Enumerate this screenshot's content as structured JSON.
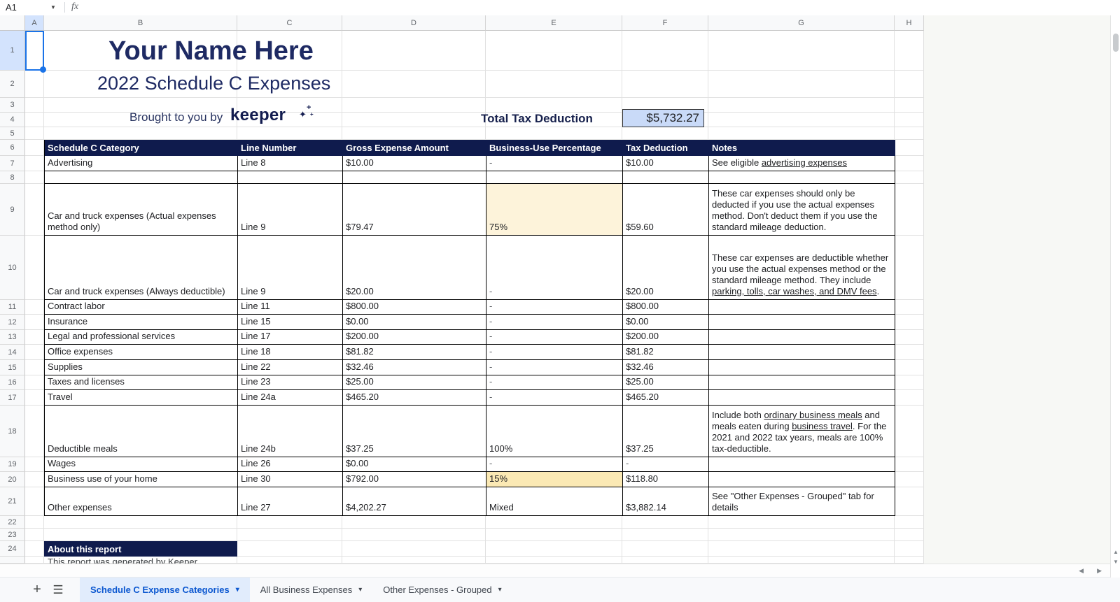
{
  "app": {
    "name_box": "A1",
    "formula_label": "fx"
  },
  "grid": {
    "columns": [
      "A",
      "B",
      "C",
      "D",
      "E",
      "F",
      "G",
      "H"
    ],
    "row_numbers": [
      "1",
      "2",
      "3",
      "4",
      "5",
      "6",
      "7",
      "8",
      "9",
      "10",
      "11",
      "12",
      "13",
      "14",
      "15",
      "16",
      "17",
      "18",
      "19",
      "20",
      "21",
      "22",
      "23",
      "24"
    ]
  },
  "header": {
    "title": "Your Name Here",
    "subtitle": "2022 Schedule C Expenses",
    "brought_by": "Brought to you by",
    "brand": "keeper",
    "total_label": "Total Tax Deduction",
    "total_value": "$5,732.27"
  },
  "table": {
    "headers": [
      "Schedule C Category",
      "Line Number",
      "Gross Expense Amount",
      "Business-Use Percentage",
      "Tax Deduction",
      "Notes"
    ],
    "rows": [
      {
        "category": "Advertising",
        "line": "Line 8",
        "gross": "$10.00",
        "pct": "-",
        "deduction": "$10.00",
        "notes": [
          {
            "t": "See eligible "
          },
          {
            "t": "advertising expenses",
            "link": true
          }
        ]
      },
      {
        "category": "",
        "line": "",
        "gross": "",
        "pct": "",
        "deduction": "",
        "notes": []
      },
      {
        "category": "Car and truck expenses (Actual expenses method only)",
        "line": "Line 9",
        "gross": "$79.47",
        "pct": "75%",
        "deduction": "$59.60",
        "pct_bg": "#fdf3da",
        "pct_comment": true,
        "notes": [
          {
            "t": "These car expenses should only be deducted if you use the actual expenses method. Don't deduct them if you use the standard mileage deduction."
          }
        ]
      },
      {
        "category": "Car and truck expenses (Always deductible)",
        "line": "Line 9",
        "gross": "$20.00",
        "pct": "-",
        "deduction": "$20.00",
        "notes": [
          {
            "t": "These car expenses are deductible whether you use the actual expenses method or the standard mileage method. They include "
          },
          {
            "t": "parking, tolls, car washes, and DMV fees",
            "link": true
          },
          {
            "t": "."
          }
        ]
      },
      {
        "category": "Contract labor",
        "line": "Line 11",
        "gross": "$800.00",
        "pct": "-",
        "deduction": "$800.00",
        "notes": []
      },
      {
        "category": "Insurance",
        "line": "Line 15",
        "gross": "$0.00",
        "pct": "-",
        "deduction": "$0.00",
        "notes": []
      },
      {
        "category": "Legal and professional services",
        "line": "Line 17",
        "gross": "$200.00",
        "pct": "-",
        "deduction": "$200.00",
        "notes": []
      },
      {
        "category": "Office expenses",
        "line": "Line 18",
        "gross": "$81.82",
        "pct": "-",
        "deduction": "$81.82",
        "notes": []
      },
      {
        "category": "Supplies",
        "line": "Line 22",
        "gross": "$32.46",
        "pct": "-",
        "deduction": "$32.46",
        "notes": []
      },
      {
        "category": "Taxes and licenses",
        "line": "Line 23",
        "gross": "$25.00",
        "pct": "-",
        "deduction": "$25.00",
        "notes": []
      },
      {
        "category": "Travel",
        "line": "Line 24a",
        "gross": "$465.20",
        "pct": "-",
        "deduction": "$465.20",
        "notes": []
      },
      {
        "category": "Deductible meals",
        "line": "Line 24b",
        "gross": "$37.25",
        "pct": "100%",
        "deduction": "$37.25",
        "notes": [
          {
            "t": "Include both "
          },
          {
            "t": "ordinary business meals",
            "link": true
          },
          {
            "t": " and meals eaten during "
          },
          {
            "t": "business travel",
            "link": true
          },
          {
            "t": ". For the 2021 and 2022 tax years, meals are 100% tax-deductible."
          }
        ]
      },
      {
        "category": "Wages",
        "line": "Line 26",
        "gross": "$0.00",
        "pct": "-",
        "deduction": "-",
        "notes": []
      },
      {
        "category": "Business use of your home",
        "line": "Line 30",
        "gross": "$792.00",
        "pct": "15%",
        "deduction": "$118.80",
        "pct_bg": "#fbe9b4",
        "pct_comment": true,
        "notes": []
      },
      {
        "category": "Other expenses",
        "line": "Line 27",
        "gross": "$4,202.27",
        "pct": "Mixed",
        "deduction": "$3,882.14",
        "notes": [
          {
            "t": "See \"Other Expenses - Grouped\" tab for details"
          }
        ]
      }
    ]
  },
  "about": {
    "title": "About this report",
    "partial_text": "This report was generated by Keeper"
  },
  "sheet_tabs": {
    "tabs": [
      "Schedule C Expense Categories",
      "All Business Expenses",
      "Other Expenses - Grouped"
    ],
    "active_index": 0
  },
  "colors": {
    "navy_title": "#1e2a63",
    "table_header_bg": "#0f1b4d",
    "brand_navy": "#121b4f",
    "highlight_cream": "#fdf3da",
    "highlight_gold": "#fbe9b4",
    "total_value_bg": "#c9daf8",
    "selection_blue": "#1a73e8",
    "active_tab_text": "#0b57d0",
    "active_tab_bg": "#e1ecfc"
  }
}
